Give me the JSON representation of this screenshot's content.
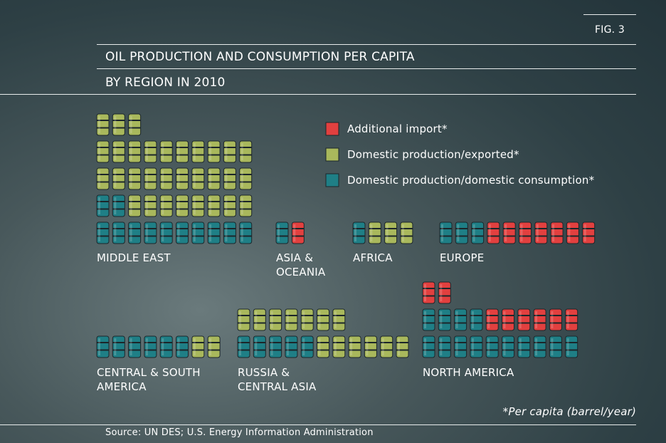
{
  "chart_data": {
    "type": "pictogram",
    "figure_label": "FIG. 3",
    "title": "OIL PRODUCTION AND CONSUMPTION PER CAPITA",
    "subtitle": "BY REGION IN 2010",
    "footnote": "*Per capita (barrel/year)",
    "source": "Source: UN DES; U.S. Energy Information Administration",
    "categories": [
      "MIDDLE EAST",
      "ASIA & OCEANIA",
      "AFRICA",
      "EUROPE",
      "CENTRAL & SOUTH AMERICA",
      "RUSSIA & CENTRAL ASIA",
      "NORTH AMERICA"
    ],
    "series": [
      {
        "name": "Domestic production/domestic consumption*",
        "color": "#1f7f86",
        "values": [
          12,
          1,
          1,
          3,
          6,
          5,
          14
        ]
      },
      {
        "name": "Domestic production/exported*",
        "color": "#a9b85c",
        "values": [
          31,
          0,
          3,
          0,
          2,
          13,
          0
        ]
      },
      {
        "name": "Additional import*",
        "color": "#e2403f",
        "values": [
          0,
          1,
          0,
          7,
          0,
          0,
          8
        ]
      }
    ]
  }
}
